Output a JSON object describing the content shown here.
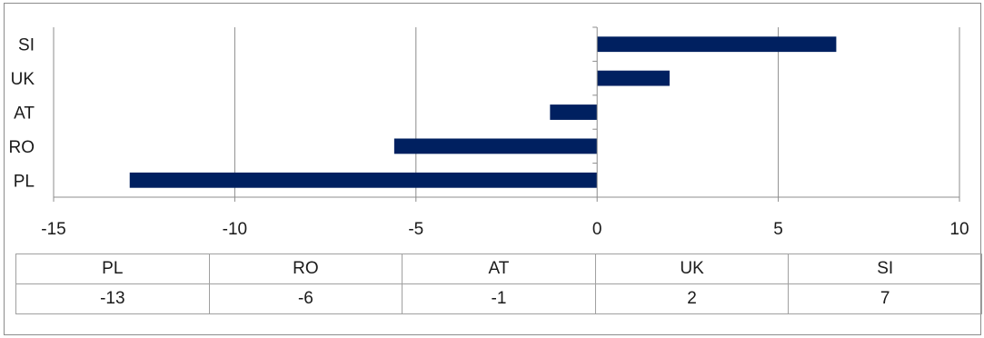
{
  "chart_data": {
    "type": "bar",
    "orientation": "horizontal",
    "categories": [
      "PL",
      "RO",
      "AT",
      "UK",
      "SI"
    ],
    "values": [
      -12.9,
      -5.6,
      -1.3,
      2.0,
      6.6
    ],
    "xlim": [
      -15,
      10
    ],
    "xticks": [
      -15,
      -10,
      -5,
      0,
      5,
      10
    ],
    "grid": true,
    "bar_color": "#002060",
    "table": {
      "headers": [
        "PL",
        "RO",
        "AT",
        "UK",
        "SI"
      ],
      "values": [
        "-13",
        "-6",
        "-1",
        "2",
        "7"
      ]
    }
  }
}
